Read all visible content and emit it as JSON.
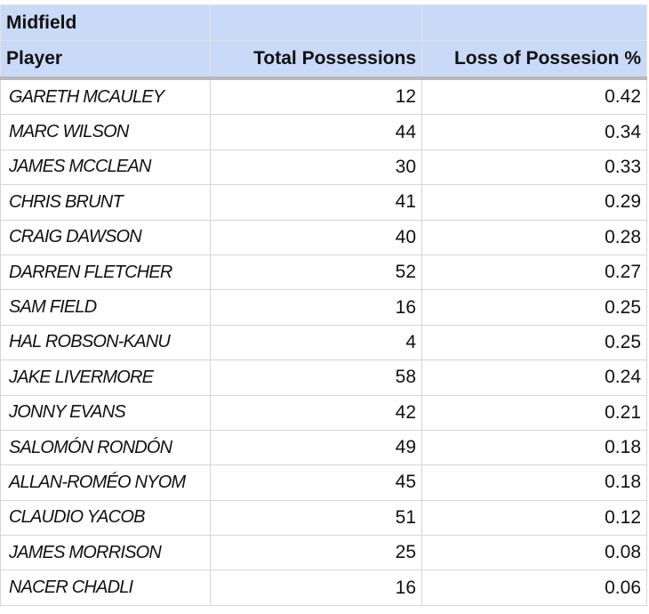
{
  "table": {
    "title": "Midfield",
    "columns": [
      "Player",
      "Total Possessions",
      "Loss of Possesion %"
    ],
    "rows": [
      [
        "GARETH MCAULEY",
        12,
        0.42
      ],
      [
        "MARC WILSON",
        44,
        0.34
      ],
      [
        "JAMES MCCLEAN",
        30,
        0.33
      ],
      [
        "CHRIS BRUNT",
        41,
        0.29
      ],
      [
        "CRAIG DAWSON",
        40,
        0.28
      ],
      [
        "DARREN FLETCHER",
        52,
        0.27
      ],
      [
        "SAM FIELD",
        16,
        0.25
      ],
      [
        "HAL ROBSON-KANU",
        4,
        0.25
      ],
      [
        "JAKE LIVERMORE",
        58,
        0.24
      ],
      [
        "JONNY EVANS",
        42,
        0.21
      ],
      [
        "SALOMÓN RONDÓN",
        49,
        0.18
      ],
      [
        "ALLAN-ROMÉO NYOM",
        45,
        0.18
      ],
      [
        "CLAUDIO YACOB",
        51,
        0.12
      ],
      [
        "JAMES MORRISON",
        25,
        0.08
      ],
      [
        "NACER CHADLI",
        16,
        0.06
      ]
    ]
  }
}
